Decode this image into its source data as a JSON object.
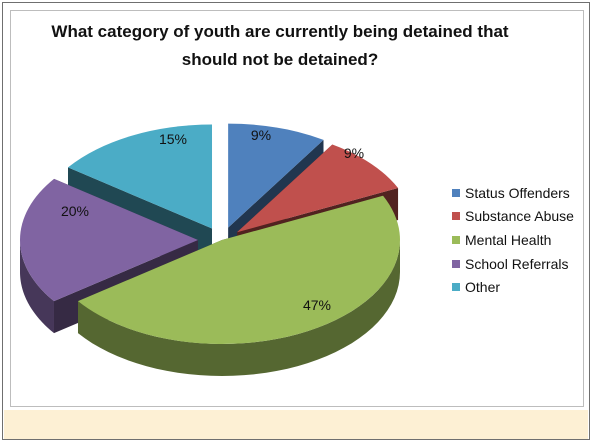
{
  "chart_data": {
    "type": "pie",
    "title": "What category of youth are currently being detained that should not be detained?",
    "legend_position": "right",
    "exploded": true,
    "style": "3d",
    "slices": [
      {
        "label": "Status Offenders",
        "value": 9,
        "value_label": "9%",
        "color": "#4f81bd"
      },
      {
        "label": "Substance Abuse",
        "value": 9,
        "value_label": "9%",
        "color": "#c0504d"
      },
      {
        "label": "Mental Health",
        "value": 47,
        "value_label": "47%",
        "color": "#9bbb59"
      },
      {
        "label": "School Referrals",
        "value": 20,
        "value_label": "20%",
        "color": "#8064a2"
      },
      {
        "label": "Other",
        "value": 15,
        "value_label": "15%",
        "color": "#4bacc6"
      }
    ]
  }
}
